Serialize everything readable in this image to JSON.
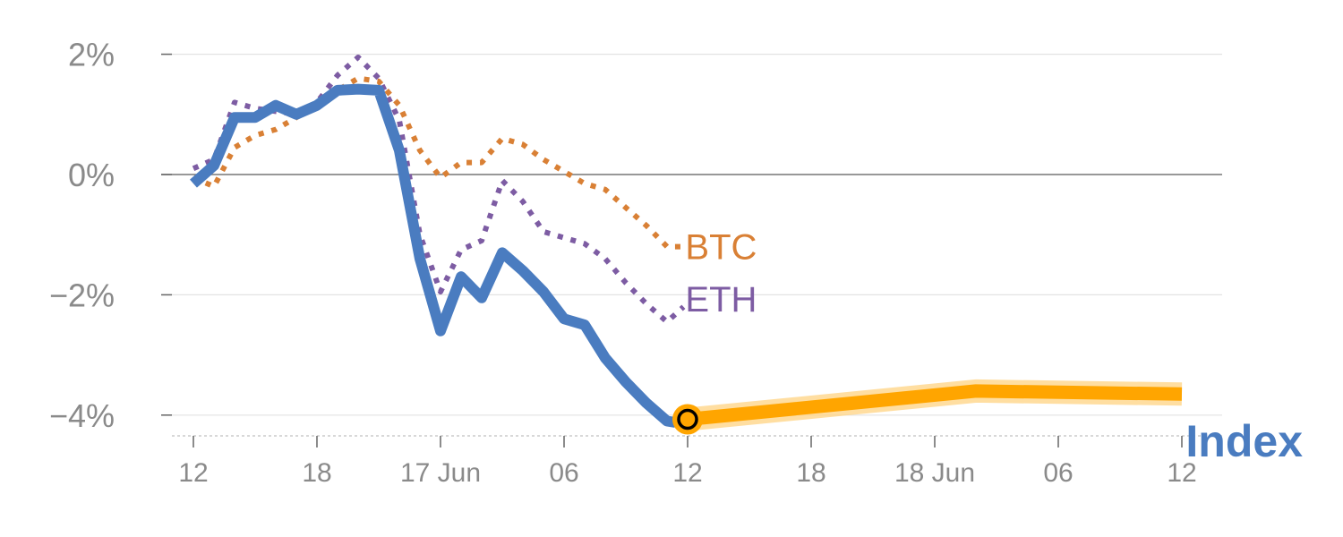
{
  "chart_data": {
    "type": "line",
    "title": "",
    "xlabel": "",
    "ylabel": "",
    "ylim": [
      -4.35,
      2.2
    ],
    "y_ticks": [
      {
        "value": 2,
        "label": "2%"
      },
      {
        "value": 0,
        "label": "0%"
      },
      {
        "value": -2,
        "label": "−2%"
      },
      {
        "value": -4,
        "label": "−4%"
      }
    ],
    "x_ticks": [
      {
        "hour": 12,
        "label": "12"
      },
      {
        "hour": 18,
        "label": "18"
      },
      {
        "hour": 24,
        "label": "17 Jun"
      },
      {
        "hour": 30,
        "label": "06"
      },
      {
        "hour": 36,
        "label": "12"
      },
      {
        "hour": 42,
        "label": "18"
      },
      {
        "hour": 48,
        "label": "18 Jun"
      },
      {
        "hour": 54,
        "label": "06"
      },
      {
        "hour": 60,
        "label": "12"
      }
    ],
    "grid": true,
    "colors": {
      "index": "#4a7cc0",
      "btc": "#d98035",
      "eth": "#7d5ca3",
      "projection": "#ffa500",
      "projection_glow": "#ffd68a",
      "zero_line": "#777777",
      "grid": "#e3e3e3",
      "tick_text": "#8a8a8a"
    },
    "series": [
      {
        "name": "Index",
        "label": "Index",
        "style": "solid",
        "x": [
          12,
          13,
          14,
          15,
          16,
          17,
          18,
          19,
          20,
          21,
          22,
          23,
          24,
          25,
          26,
          27,
          28,
          29,
          30,
          31,
          32,
          33,
          34,
          35,
          35.4
        ],
        "y": [
          -0.15,
          0.15,
          0.95,
          0.95,
          1.15,
          1.0,
          1.15,
          1.4,
          1.42,
          1.4,
          0.4,
          -1.4,
          -2.6,
          -1.7,
          -2.05,
          -1.3,
          -1.6,
          -1.95,
          -2.4,
          -2.5,
          -3.05,
          -3.45,
          -3.8,
          -4.1,
          -4.12
        ]
      },
      {
        "name": "BTC",
        "label": "BTC",
        "style": "dotted",
        "x": [
          12,
          13,
          14,
          15,
          16,
          17,
          18,
          19,
          20,
          21,
          22,
          23,
          24,
          25,
          26,
          27,
          28,
          29,
          30,
          31,
          32,
          33,
          34,
          35,
          35.8
        ],
        "y": [
          -0.05,
          -0.2,
          0.45,
          0.65,
          0.75,
          0.95,
          1.15,
          1.4,
          1.6,
          1.55,
          1.15,
          0.4,
          -0.05,
          0.2,
          0.2,
          0.6,
          0.5,
          0.25,
          0.05,
          -0.15,
          -0.25,
          -0.55,
          -0.85,
          -1.2,
          -1.2
        ]
      },
      {
        "name": "ETH",
        "label": "ETH",
        "style": "dotted",
        "x": [
          12,
          13,
          14,
          15,
          16,
          17,
          18,
          19,
          20,
          21,
          22,
          23,
          24,
          25,
          26,
          27,
          28,
          29,
          30,
          31,
          32,
          33,
          34,
          35,
          35.8
        ],
        "y": [
          0.1,
          0.25,
          1.2,
          1.1,
          1.05,
          1.0,
          1.2,
          1.65,
          1.95,
          1.6,
          0.9,
          -1.0,
          -1.95,
          -1.25,
          -1.1,
          -0.1,
          -0.45,
          -0.95,
          -1.05,
          -1.15,
          -1.4,
          -1.8,
          -2.15,
          -2.45,
          -2.2
        ]
      },
      {
        "name": "projection",
        "style": "band",
        "x": [
          36,
          50,
          60
        ],
        "y": [
          -4.07,
          -3.6,
          -3.65
        ]
      }
    ],
    "highlight_point": {
      "x": 36,
      "y": -4.07
    }
  }
}
